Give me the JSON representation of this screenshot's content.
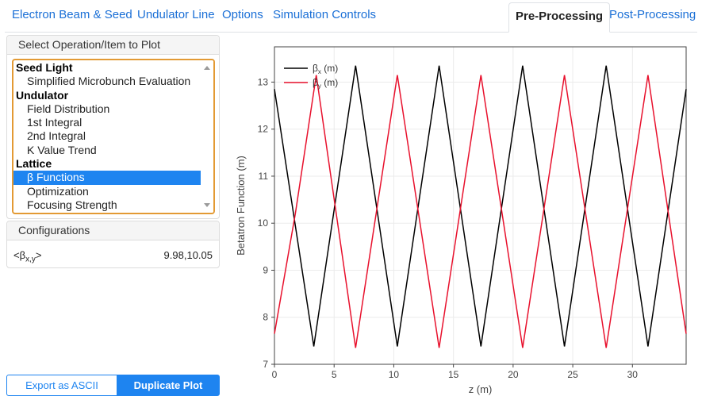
{
  "tabs": [
    {
      "label": "Electron Beam & Seed",
      "active": false
    },
    {
      "label": "Undulator Line",
      "active": false
    },
    {
      "label": "Options",
      "active": false
    },
    {
      "label": "Simulation Controls",
      "active": false
    },
    {
      "label": "Pre-Processing",
      "active": true
    },
    {
      "label": "Post-Processing",
      "active": false
    }
  ],
  "operation_panel": {
    "title": "Select Operation/Item to Plot",
    "groups": [
      {
        "label": "Seed Light",
        "items": [
          "Simplified Microbunch Evaluation"
        ]
      },
      {
        "label": "Undulator",
        "items": [
          "Field Distribution",
          "1st Integral",
          "2nd Integral",
          "K Value Trend"
        ]
      },
      {
        "label": "Lattice",
        "items": [
          "β Functions",
          "Optimization",
          "Focusing Strength"
        ]
      }
    ],
    "selected": "β Functions"
  },
  "config_panel": {
    "title": "Configurations",
    "label_main": "<β",
    "label_sub": "x,y",
    "label_close": ">",
    "value": "9.98,10.05"
  },
  "buttons": {
    "export": "Export as ASCII",
    "duplicate": "Duplicate Plot"
  },
  "chart_data": {
    "type": "line",
    "xlabel": "z (m)",
    "ylabel": "Betatron Function (m)",
    "xlim": [
      0,
      34.5
    ],
    "ylim": [
      7,
      13.75
    ],
    "xticks": [
      0,
      5,
      10,
      15,
      20,
      25,
      30
    ],
    "yticks": [
      7,
      8,
      9,
      10,
      11,
      12,
      13
    ],
    "legend": "top-left",
    "grid": true,
    "series": [
      {
        "name": "βx (m)",
        "name_main": "β",
        "name_sub": "x",
        "name_unit": " (m)",
        "color": "#000000",
        "x": [
          0,
          3.3,
          6.8,
          10.3,
          13.8,
          17.3,
          20.8,
          24.3,
          27.8,
          31.3,
          34.5
        ],
        "y": [
          12.85,
          7.38,
          13.35,
          7.38,
          13.35,
          7.38,
          13.35,
          7.38,
          13.35,
          7.38,
          12.85
        ]
      },
      {
        "name": "βy (m)",
        "name_main": "β",
        "name_sub": "y",
        "name_unit": " (m)",
        "color": "#e8112d",
        "x": [
          0,
          1.75,
          3.5,
          6.8,
          10.3,
          13.8,
          17.3,
          20.8,
          24.3,
          27.8,
          31.3,
          34.5
        ],
        "y": [
          7.65,
          10.2,
          13.15,
          7.35,
          13.15,
          7.35,
          13.15,
          7.35,
          13.15,
          7.35,
          13.15,
          7.65
        ]
      }
    ]
  }
}
